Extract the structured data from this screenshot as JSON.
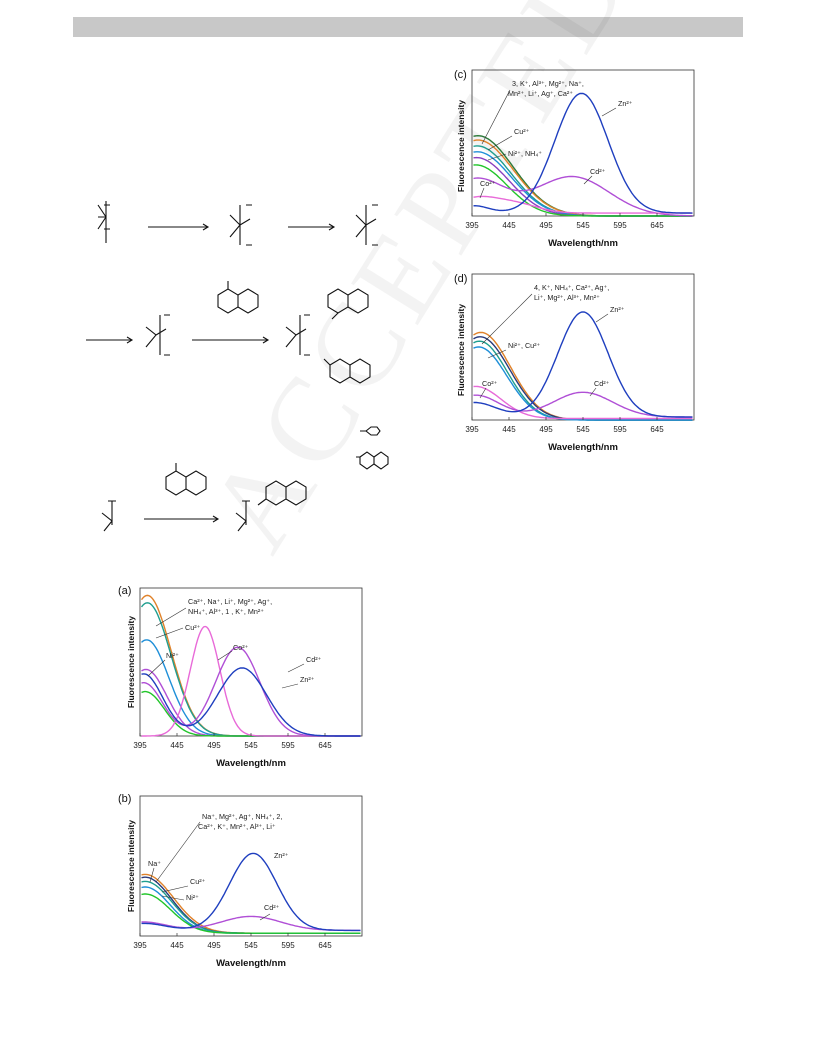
{
  "watermark": "ACCEPTED MANUSCRIPT",
  "colors": {
    "blue": "#1f3fbf",
    "violet": "#b04fd6",
    "pink": "#e86ad8",
    "green": "#22c52a",
    "orange": "#e0822a",
    "teal": "#1f9e8f",
    "cyan": "#1f8fd8",
    "purple": "#8a3fc0",
    "navy": "#2a3a7a",
    "magenta": "#d05ac8",
    "darkgreen": "#2d7a3a"
  },
  "chart_data": [
    {
      "panel": "(a)",
      "type": "line",
      "xlabel": "Wavelength/nm",
      "ylabel": "Fluorescence intensity",
      "xlim": [
        395,
        695
      ],
      "xticks": [
        395,
        445,
        495,
        545,
        595,
        645
      ],
      "annotations": [
        {
          "text": "Ca²⁺, Na⁺, Li⁺, Mg²⁺, Ag⁺,"
        },
        {
          "text": "NH₄⁺, Al³⁺, 1 , K⁺, Mn²⁺"
        },
        {
          "text": "Cu²⁺"
        },
        {
          "text": "Ni²⁺"
        },
        {
          "text": "Co²⁺"
        },
        {
          "text": "Cd²⁺"
        },
        {
          "text": "Zn²⁺"
        }
      ],
      "series": [
        {
          "color": "orange",
          "peaks": [
            [
              405,
              0.95,
              32
            ]
          ],
          "floor": 0
        },
        {
          "color": "teal",
          "peaks": [
            [
              405,
              0.9,
              32
            ]
          ],
          "floor": 0
        },
        {
          "color": "cyan",
          "peaks": [
            [
              404,
              0.65,
              30
            ]
          ],
          "floor": 0
        },
        {
          "color": "violet",
          "peaks": [
            [
              403,
              0.45,
              28
            ]
          ],
          "floor": 0
        },
        {
          "color": "green",
          "peaks": [
            [
              402,
              0.3,
              26
            ]
          ],
          "floor": 0
        },
        {
          "color": "pink",
          "peaks": [
            [
              483,
              0.74,
              20
            ]
          ],
          "floor": 0
        },
        {
          "color": "violet",
          "peaks": [
            [
              400,
              0.36,
              26
            ],
            [
              527,
              0.6,
              30
            ]
          ],
          "floor": 0
        },
        {
          "color": "blue",
          "peaks": [
            [
              400,
              0.42,
              26
            ],
            [
              533,
              0.46,
              33
            ]
          ],
          "floor": 0
        }
      ]
    },
    {
      "panel": "(b)",
      "type": "line",
      "xlabel": "Wavelength/nm",
      "ylabel": "Fluorescence intensity",
      "xlim": [
        395,
        695
      ],
      "xticks": [
        395,
        445,
        495,
        545,
        595,
        645
      ],
      "annotations": [
        {
          "text": "Na⁺, Mg²⁺, Ag⁺, NH₄⁺, 2,"
        },
        {
          "text": "Ca²⁺, K⁺, Mn²⁺, Al³⁺, Li⁺"
        },
        {
          "text": "Na⁺"
        },
        {
          "text": "Cu²⁺"
        },
        {
          "text": "Ni²⁺"
        },
        {
          "text": "Zn²⁺"
        },
        {
          "text": "Cd²⁺"
        }
      ],
      "series": [
        {
          "color": "orange",
          "peaks": [
            [
              402,
              0.42,
              38
            ]
          ],
          "floor": 0.02
        },
        {
          "color": "navy",
          "peaks": [
            [
              402,
              0.4,
              36
            ]
          ],
          "floor": 0.02
        },
        {
          "color": "teal",
          "peaks": [
            [
              402,
              0.37,
              36
            ]
          ],
          "floor": 0.02
        },
        {
          "color": "cyan",
          "peaks": [
            [
              402,
              0.33,
              34
            ]
          ],
          "floor": 0.02
        },
        {
          "color": "green",
          "peaks": [
            [
              402,
              0.28,
              34
            ]
          ],
          "floor": 0.02
        },
        {
          "color": "violet",
          "peaks": [
            [
              400,
              0.06,
              30
            ],
            [
              545,
              0.1,
              40
            ]
          ],
          "floor": 0.04
        },
        {
          "color": "blue",
          "peaks": [
            [
              400,
              0.05,
              30
            ],
            [
              548,
              0.55,
              32
            ]
          ],
          "floor": 0.04
        }
      ]
    },
    {
      "panel": "(c)",
      "type": "line",
      "xlabel": "Wavelength/nm",
      "ylabel": "Fluorescence intensity",
      "xlim": [
        395,
        695
      ],
      "xticks": [
        395,
        445,
        495,
        545,
        595,
        645
      ],
      "annotations": [
        {
          "text": "3, K⁺, Al³⁺, Mg²⁺, Na⁺,"
        },
        {
          "text": "Mn²⁺, Li⁺, Ag⁺, Ca²⁺"
        },
        {
          "text": "Cu²⁺"
        },
        {
          "text": "Ni²⁺, NH₄⁺"
        },
        {
          "text": "Co²⁺"
        },
        {
          "text": "Zn²⁺"
        },
        {
          "text": "Cd²⁺"
        }
      ],
      "series": [
        {
          "color": "darkgreen",
          "peaks": [
            [
              403,
              0.55,
              48
            ]
          ],
          "floor": 0
        },
        {
          "color": "orange",
          "peaks": [
            [
              403,
              0.52,
              48
            ]
          ],
          "floor": 0
        },
        {
          "color": "teal",
          "peaks": [
            [
              402,
              0.48,
              46
            ]
          ],
          "floor": 0
        },
        {
          "color": "cyan",
          "peaks": [
            [
              402,
              0.44,
              46
            ]
          ],
          "floor": 0
        },
        {
          "color": "purple",
          "peaks": [
            [
              401,
              0.4,
              44
            ]
          ],
          "floor": 0
        },
        {
          "color": "green",
          "peaks": [
            [
              400,
              0.35,
              42
            ]
          ],
          "floor": 0
        },
        {
          "color": "violet",
          "peaks": [
            [
              400,
              0.25,
              38
            ],
            [
              530,
              0.27,
              50
            ]
          ],
          "floor": 0
        },
        {
          "color": "pink",
          "peaks": [
            [
              400,
              0.1,
              30
            ],
            [
              455,
              0.06,
              30
            ]
          ],
          "floor": 0.02
        },
        {
          "color": "blue",
          "peaks": [
            [
              398,
              0.05,
              20
            ],
            [
              543,
              0.82,
              36
            ]
          ],
          "floor": 0.02
        }
      ]
    },
    {
      "panel": "(d)",
      "type": "line",
      "xlabel": "Wavelength/nm",
      "ylabel": "Fluorescence intensity",
      "xlim": [
        395,
        695
      ],
      "xticks": [
        395,
        445,
        495,
        545,
        595,
        645
      ],
      "annotations": [
        {
          "text": "4, K⁺, NH₄⁺, Ca²⁺, Ag⁺,"
        },
        {
          "text": "Li⁺, Mg²⁺, Al³⁺, Mn²⁺"
        },
        {
          "text": "Ni²⁺, Cu²⁺"
        },
        {
          "text": "Co²⁺"
        },
        {
          "text": "Zn²⁺"
        },
        {
          "text": "Cd²⁺"
        }
      ],
      "series": [
        {
          "color": "orange",
          "peaks": [
            [
              407,
              0.6,
              40
            ]
          ],
          "floor": 0
        },
        {
          "color": "navy",
          "peaks": [
            [
              406,
              0.57,
              40
            ]
          ],
          "floor": 0
        },
        {
          "color": "teal",
          "peaks": [
            [
              405,
              0.54,
              38
            ]
          ],
          "floor": 0
        },
        {
          "color": "cyan",
          "peaks": [
            [
              404,
              0.5,
              38
            ]
          ],
          "floor": 0
        },
        {
          "color": "pink",
          "peaks": [
            [
              400,
              0.22,
              34
            ]
          ],
          "floor": 0.01
        },
        {
          "color": "violet",
          "peaks": [
            [
              400,
              0.15,
              32
            ],
            [
              545,
              0.17,
              40
            ]
          ],
          "floor": 0.02
        },
        {
          "color": "blue",
          "peaks": [
            [
              398,
              0.1,
              30
            ],
            [
              545,
              0.72,
              34
            ]
          ],
          "floor": 0.02
        }
      ]
    }
  ]
}
